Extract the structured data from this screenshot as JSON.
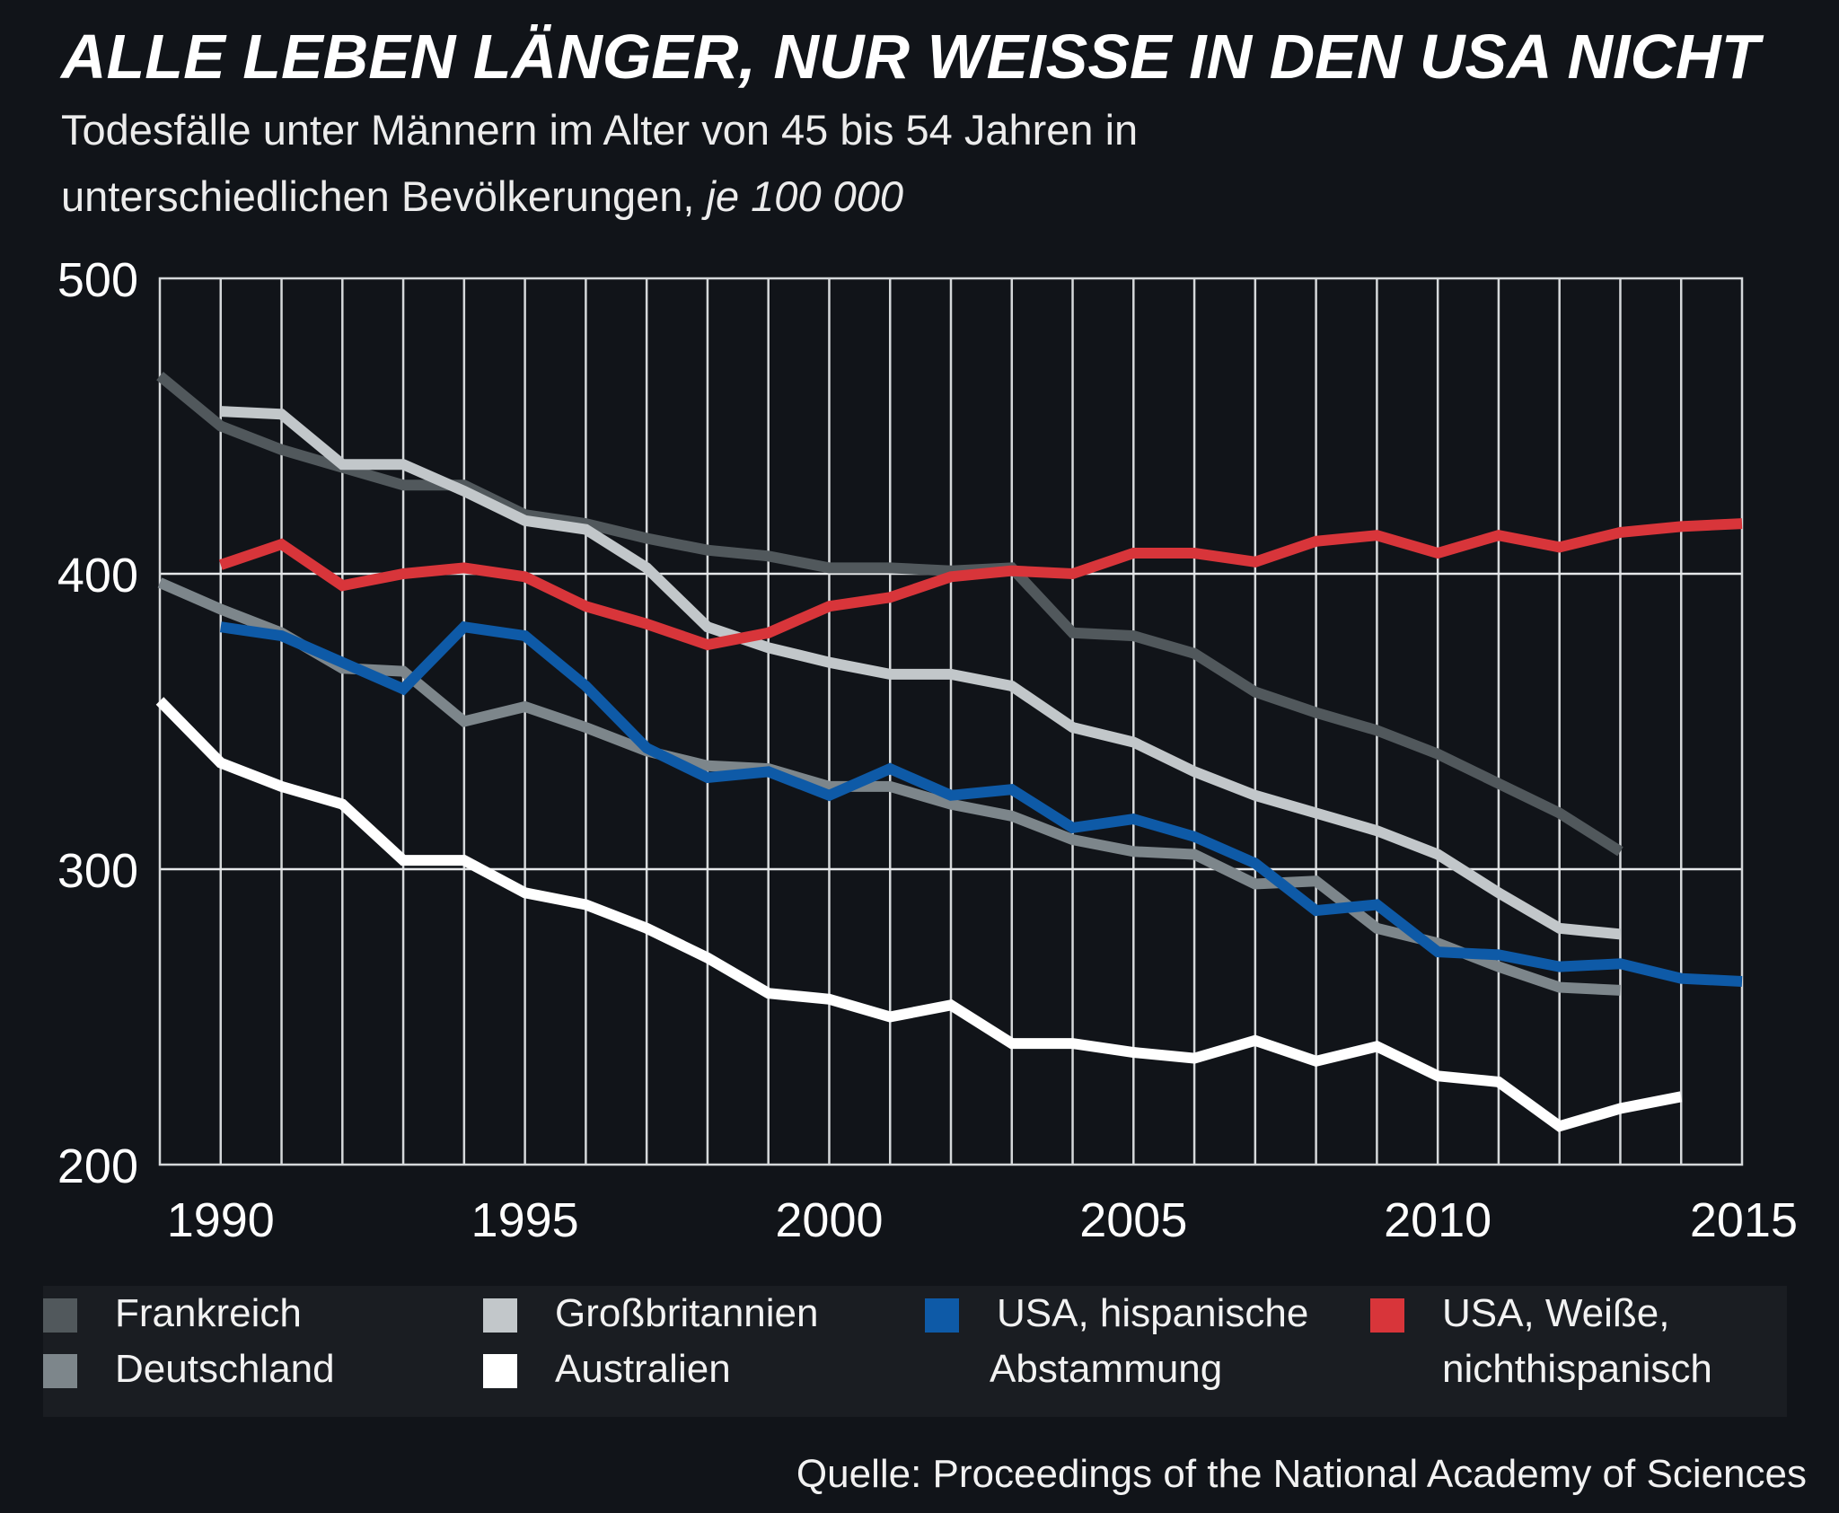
{
  "title": "ALLE LEBEN LÄNGER, NUR WEISSE IN DEN USA NICHT",
  "subtitle": {
    "line1": "Todesfälle unter Männern im Alter von 45 bis 54 Jahren in",
    "line2": "unterschiedlichen Bevölkerungen,",
    "unit": "je 100 000"
  },
  "legend": {
    "frankreich": "Frankreich",
    "deutschland": "Deutschland",
    "grossbritannien": "Großbritannien",
    "australien": "Australien",
    "usa_hisp_line1": "USA, hispanische",
    "usa_hisp_line2": "Abstammung",
    "usa_weiss_line1": "USA, Weiße,",
    "usa_weiss_line2": "nichthispanisch"
  },
  "source": "Quelle: Proceedings of the National Academy of Sciences",
  "chart_data": {
    "type": "line",
    "xlim": [
      1989,
      2015
    ],
    "ylim": [
      200,
      500
    ],
    "x_ticks": [
      1990,
      1995,
      2000,
      2005,
      2010,
      2015
    ],
    "x_tick_labels": [
      "1990",
      "1995",
      "2000",
      "2005",
      "2010",
      "2015"
    ],
    "y_ticks": [
      200,
      300,
      400,
      500
    ],
    "y_tick_labels": [
      "200",
      "300",
      "400",
      "500"
    ],
    "grid": "vertical lines each year, horizontal at 300 and 400",
    "legend_position": "bottom",
    "series": [
      {
        "name": "Frankreich",
        "color": "#51585c",
        "x": [
          1989,
          1990,
          1991,
          1992,
          1993,
          1994,
          1995,
          1996,
          1997,
          1998,
          1999,
          2000,
          2001,
          2002,
          2003,
          2004,
          2005,
          2006,
          2007,
          2008,
          2009,
          2010,
          2011,
          2012,
          2013
        ],
        "values": [
          467,
          450,
          442,
          436,
          430,
          430,
          420,
          417,
          412,
          408,
          406,
          402,
          402,
          401,
          402,
          380,
          379,
          373,
          360,
          353,
          347,
          339,
          329,
          319,
          306
        ]
      },
      {
        "name": "Deutschland",
        "color": "#7d868b",
        "x": [
          1989,
          1990,
          1991,
          1992,
          1993,
          1994,
          1995,
          1996,
          1997,
          1998,
          1999,
          2000,
          2001,
          2002,
          2003,
          2004,
          2005,
          2006,
          2007,
          2008,
          2009,
          2010,
          2011,
          2012,
          2013,
          2014
        ],
        "values": [
          397,
          388,
          380,
          368,
          367,
          350,
          355,
          348,
          340,
          335,
          334,
          328,
          328,
          322,
          318,
          310,
          306,
          305,
          295,
          296,
          280,
          275,
          267,
          260,
          259,
          null
        ]
      },
      {
        "name": "Großbritannien",
        "color": "#c2c7ca",
        "x": [
          1990,
          1991,
          1992,
          1993,
          1994,
          1995,
          1996,
          1997,
          1998,
          1999,
          2000,
          2001,
          2002,
          2003,
          2004,
          2005,
          2006,
          2007,
          2008,
          2009,
          2010,
          2011,
          2012,
          2013
        ],
        "values": [
          455,
          454,
          437,
          437,
          428,
          418,
          415,
          402,
          382,
          375,
          370,
          366,
          366,
          362,
          348,
          343,
          333,
          325,
          319,
          313,
          305,
          292,
          280,
          278
        ]
      },
      {
        "name": "Australien",
        "color": "#ffffff",
        "x": [
          1989,
          1990,
          1991,
          1992,
          1993,
          1994,
          1995,
          1996,
          1997,
          1998,
          1999,
          2000,
          2001,
          2002,
          2003,
          2004,
          2005,
          2006,
          2007,
          2008,
          2009,
          2010,
          2011,
          2012,
          2013,
          2014
        ],
        "values": [
          357,
          336,
          328,
          322,
          303,
          303,
          292,
          288,
          280,
          270,
          258,
          256,
          250,
          254,
          241,
          241,
          238,
          236,
          242,
          235,
          240,
          230,
          228,
          213,
          219,
          223
        ]
      },
      {
        "name": "USA, hispanische Abstammung",
        "color": "#0e5aa7",
        "x": [
          1990,
          1991,
          1992,
          1993,
          1994,
          1995,
          1996,
          1997,
          1998,
          1999,
          2000,
          2001,
          2002,
          2003,
          2004,
          2005,
          2006,
          2007,
          2008,
          2009,
          2010,
          2011,
          2012,
          2013,
          2014,
          2015
        ],
        "values": [
          382,
          379,
          370,
          361,
          382,
          379,
          362,
          341,
          331,
          333,
          325,
          334,
          325,
          327,
          314,
          317,
          311,
          302,
          286,
          288,
          272,
          271,
          267,
          268,
          263,
          262
        ]
      },
      {
        "name": "USA, Weiße, nichthispanisch",
        "color": "#d8353a",
        "x": [
          1990,
          1991,
          1992,
          1993,
          1994,
          1995,
          1996,
          1997,
          1998,
          1999,
          2000,
          2001,
          2002,
          2003,
          2004,
          2005,
          2006,
          2007,
          2008,
          2009,
          2010,
          2011,
          2012,
          2013,
          2014,
          2015
        ],
        "values": [
          403,
          410,
          396,
          400,
          402,
          399,
          389,
          383,
          376,
          380,
          389,
          392,
          399,
          401,
          400,
          407,
          407,
          404,
          411,
          413,
          407,
          413,
          409,
          414,
          416,
          417
        ]
      }
    ]
  }
}
